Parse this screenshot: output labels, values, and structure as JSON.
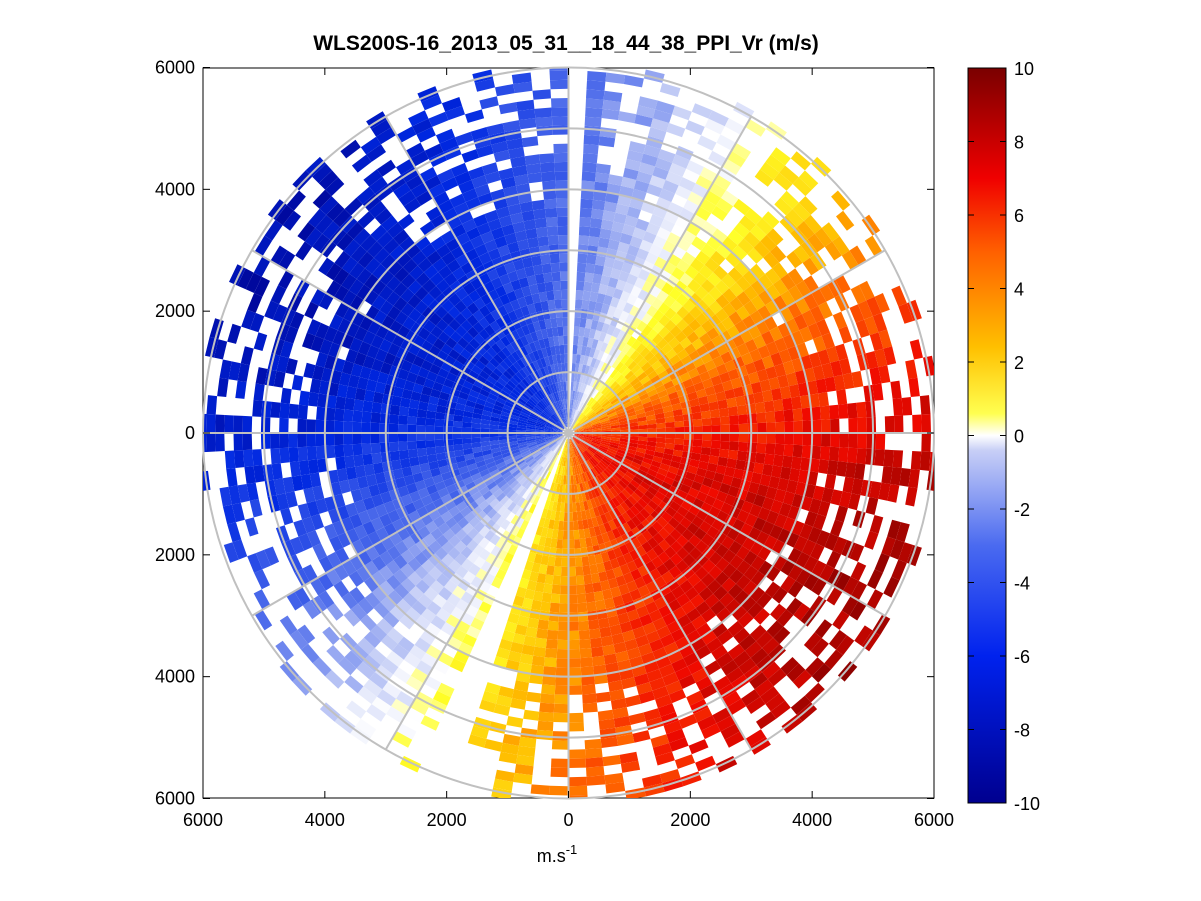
{
  "chart_data": {
    "type": "heatmap",
    "subtype": "polar-ppi-scan",
    "title": "WLS200S-16_2013_05_31__18_44_38_PPI_Vr (m/s)",
    "xlabel_base": "m.s",
    "xlabel_exp": "-1",
    "ylabel": "",
    "xlim": [
      -6000,
      6000
    ],
    "ylim": [
      -6000,
      6000
    ],
    "x_ticks": [
      -6000,
      -4000,
      -2000,
      0,
      2000,
      4000,
      6000
    ],
    "x_tick_labels": [
      "6000",
      "4000",
      "2000",
      "0",
      "2000",
      "4000",
      "6000"
    ],
    "y_ticks": [
      6000,
      4000,
      2000,
      0,
      -2000,
      -4000,
      -6000
    ],
    "y_tick_labels": [
      "6000",
      "4000",
      "2000",
      "0",
      "2000",
      "4000",
      "6000"
    ],
    "range_rings_m": [
      1000,
      2000,
      3000,
      4000,
      5000,
      6000
    ],
    "spokes_deg": [
      0,
      30,
      60,
      90,
      120,
      150,
      180,
      210,
      240,
      270,
      300,
      330
    ],
    "grid": true,
    "colorbar": {
      "label": "Vr (m/s)",
      "min": -10,
      "max": 10,
      "ticks": [
        10,
        8,
        6,
        4,
        2,
        0,
        -2,
        -4,
        -6,
        -8,
        -10
      ],
      "tick_labels": [
        "10",
        "8",
        "6",
        "4",
        "2",
        "0",
        "-2",
        "-4",
        "-6",
        "-8",
        "-10"
      ],
      "colormap": "blue-white-yellow-red"
    },
    "velocity_field_description": "Approaching (negative, blue) winds in the northwest half; receding (positive, red) winds in the southeast half; zero-velocity line runs from southwest to northeast.",
    "flow_direction_deg": 120,
    "max_abs_velocity": 9,
    "approximate_sectors": [
      {
        "azimuth_from_deg": 270,
        "azimuth_to_deg": 360,
        "vr_approx": -7
      },
      {
        "azimuth_from_deg": 0,
        "azimuth_to_deg": 30,
        "vr_approx": -5
      },
      {
        "azimuth_from_deg": 30,
        "azimuth_to_deg": 60,
        "vr_approx": -1
      },
      {
        "azimuth_from_deg": 60,
        "azimuth_to_deg": 90,
        "vr_approx": 3
      },
      {
        "azimuth_from_deg": 90,
        "azimuth_to_deg": 150,
        "vr_approx": 7
      },
      {
        "azimuth_from_deg": 150,
        "azimuth_to_deg": 210,
        "vr_approx": 6
      },
      {
        "azimuth_from_deg": 210,
        "azimuth_to_deg": 240,
        "vr_approx": 2
      },
      {
        "azimuth_from_deg": 240,
        "azimuth_to_deg": 270,
        "vr_approx": -2
      }
    ]
  }
}
